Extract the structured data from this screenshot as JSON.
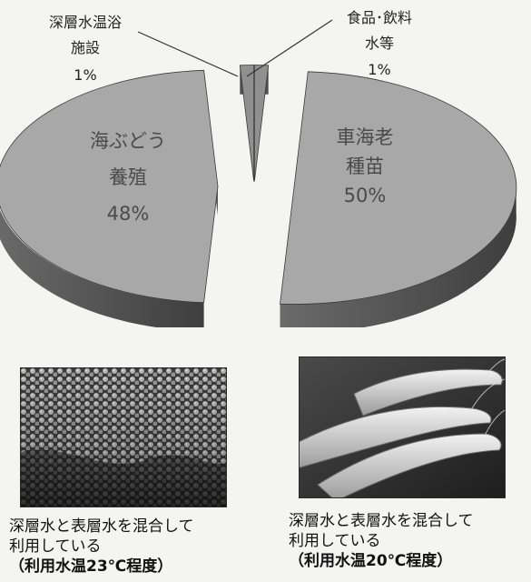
{
  "chart_data": {
    "type": "pie",
    "style": "3d-exploded",
    "slices": [
      {
        "label_lines": [
          "車海老",
          "種苗"
        ],
        "value_label": "50%",
        "value": 50
      },
      {
        "label_lines": [
          "海ぶどう",
          "養殖"
        ],
        "value_label": "48%",
        "value": 48
      },
      {
        "label_lines": [
          "深層水温浴",
          "施設"
        ],
        "value_label": "1%",
        "value": 1
      },
      {
        "label_lines": [
          "食品･飲料",
          "水等"
        ],
        "value_label": "1%",
        "value": 1
      }
    ],
    "colors": {
      "top": "#a8a8a8",
      "side": "#585858",
      "small_top": "#909090",
      "small_side": "#505050",
      "text": "#4a4a4a"
    }
  },
  "photos": [
    {
      "icon": "sea-grapes-photo"
    },
    {
      "icon": "shrimp-photo"
    }
  ],
  "captions": [
    {
      "line1": "深層水と表層水を混合して",
      "line2": "利用している",
      "line3": "（利用水温23℃程度）"
    },
    {
      "line1": "深層水と表層水を混合して",
      "line2": "利用している",
      "line3": "（利用水温20℃程度）"
    }
  ]
}
